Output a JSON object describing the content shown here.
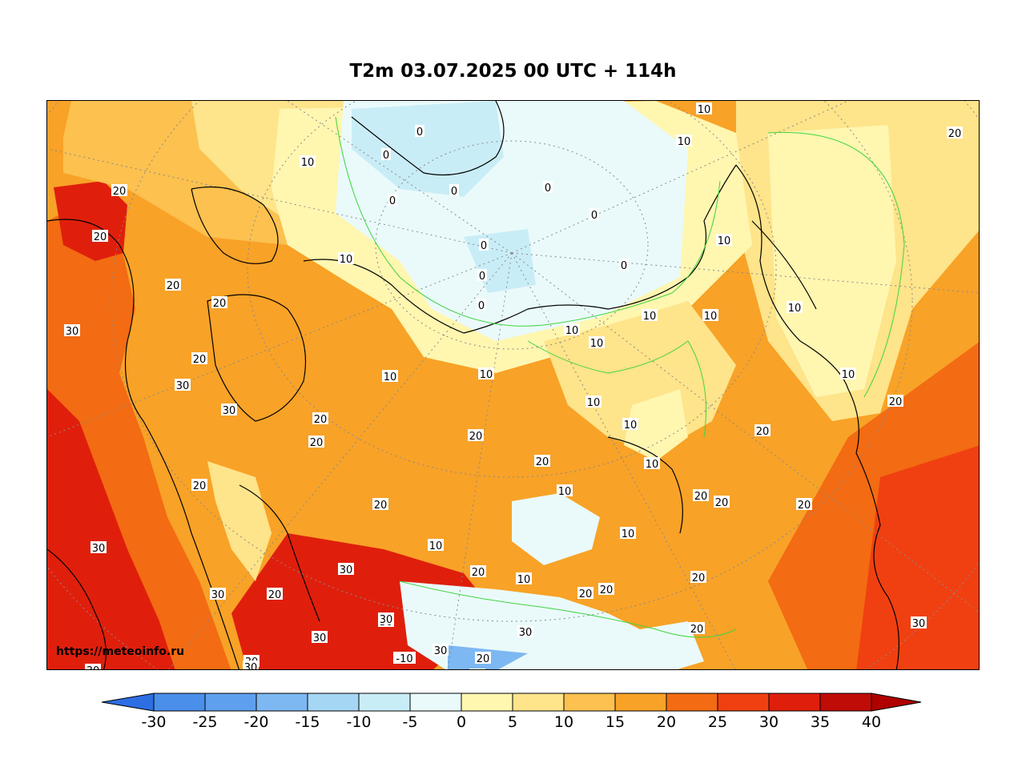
{
  "title": "T2m 03.07.2025 00 UTC + 114h",
  "watermark": "https://meteoinfo.ru",
  "colorbar": {
    "ticks": [
      "-30",
      "-25",
      "-20",
      "-15",
      "-10",
      "-5",
      "0",
      "5",
      "10",
      "15",
      "20",
      "25",
      "30",
      "35",
      "40"
    ],
    "colors": [
      "#3b7fe6",
      "#4a8fea",
      "#5ea0ee",
      "#7db8f2",
      "#a5d6f4",
      "#c9edf7",
      "#eafafb",
      "#fff6b0",
      "#fee48a",
      "#fcc14f",
      "#f8a227",
      "#f36b12",
      "#f04011",
      "#df1f0c",
      "#c00c06"
    ],
    "colors_end": {
      "low": "#2d6ee2",
      "high": "#b00000"
    }
  },
  "contour_labels": [
    "0",
    "0",
    "0",
    "0",
    "0",
    "0",
    "0",
    "0",
    "0",
    "0",
    "10",
    "10",
    "10",
    "10",
    "10",
    "10",
    "10",
    "10",
    "10",
    "10",
    "10",
    "10",
    "10",
    "10",
    "10",
    "10",
    "10",
    "10",
    "10",
    "10",
    "10",
    "20",
    "20",
    "20",
    "20",
    "20",
    "20",
    "20",
    "20",
    "20",
    "20",
    "20",
    "20",
    "20",
    "20",
    "20",
    "20",
    "20",
    "20",
    "20",
    "20",
    "20",
    "20",
    "20",
    "20",
    "30",
    "30",
    "30",
    "30",
    "30",
    "30",
    "30",
    "30",
    "30",
    "30",
    "30",
    "30",
    "30",
    "30",
    "30",
    "-10",
    "20"
  ]
}
